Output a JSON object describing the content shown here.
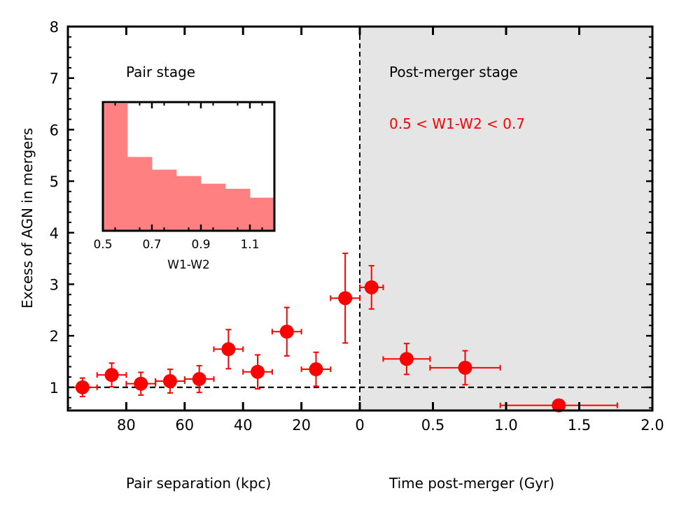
{
  "chart_data": {
    "type": "scatter",
    "ylabel": "Excess of AGN in mergers",
    "ylim": [
      0.55,
      8
    ],
    "yticks": [
      1,
      2,
      3,
      4,
      5,
      6,
      7,
      8
    ],
    "baseline": 1,
    "left_panel": {
      "label": "Pair stage",
      "xlabel": "Pair separation (kpc)",
      "xlim": [
        100,
        0
      ],
      "xticks": [
        80,
        60,
        40,
        20,
        0
      ],
      "points": [
        {
          "x": 95,
          "y": 1.0,
          "xerr": 5,
          "yerr": 0.18
        },
        {
          "x": 85,
          "y": 1.24,
          "xerr": 5,
          "yerr": 0.23
        },
        {
          "x": 75,
          "y": 1.07,
          "xerr": 5,
          "yerr": 0.22
        },
        {
          "x": 65,
          "y": 1.12,
          "xerr": 5,
          "yerr": 0.23
        },
        {
          "x": 55,
          "y": 1.16,
          "xerr": 5,
          "yerr": 0.26
        },
        {
          "x": 45,
          "y": 1.74,
          "xerr": 5,
          "yerr": 0.38
        },
        {
          "x": 35,
          "y": 1.3,
          "xerr": 5,
          "yerr": 0.33
        },
        {
          "x": 25,
          "y": 2.08,
          "xerr": 5,
          "yerr": 0.47
        },
        {
          "x": 15,
          "y": 1.35,
          "xerr": 5,
          "yerr": 0.33
        },
        {
          "x": 5,
          "y": 2.73,
          "xerr": 5,
          "yerr": 0.87
        }
      ]
    },
    "right_panel": {
      "label": "Post-merger stage",
      "annotation": "0.5 < W1-W2 < 0.7",
      "xlabel": "Time post-merger (Gyr)",
      "xlim": [
        0,
        2.0
      ],
      "xticks": [
        "0.5",
        "1.0",
        "1.5",
        "2.0"
      ],
      "points": [
        {
          "x": 0.08,
          "y": 2.94,
          "xerr": 0.08,
          "yerr": 0.42
        },
        {
          "x": 0.32,
          "y": 1.55,
          "xerr": 0.16,
          "yerr": 0.3
        },
        {
          "x": 0.72,
          "y": 1.38,
          "xerr": 0.24,
          "yerr": 0.33
        },
        {
          "x": 1.36,
          "y": 0.65,
          "xerr": 0.4,
          "yerr": 0
        }
      ]
    },
    "inset": {
      "type": "histogram",
      "xlabel": "W1-W2",
      "xlim": [
        0.5,
        1.2
      ],
      "xticks": [
        "0.5",
        "0.7",
        "0.9",
        "1.1"
      ],
      "bin_edges": [
        0.5,
        0.55,
        0.6,
        0.65,
        0.7,
        0.75,
        0.8,
        0.85,
        0.9,
        0.95,
        1.0,
        1.05,
        1.1,
        1.15,
        1.2
      ],
      "counts": [
        100,
        100,
        58,
        58,
        48,
        48,
        43,
        43,
        37,
        37,
        33,
        33,
        26,
        26
      ]
    }
  },
  "colors": {
    "points": "#ff0000",
    "histogram": "#ff8080",
    "shade": "#e5e5e5",
    "annotation": "#ff0000"
  }
}
